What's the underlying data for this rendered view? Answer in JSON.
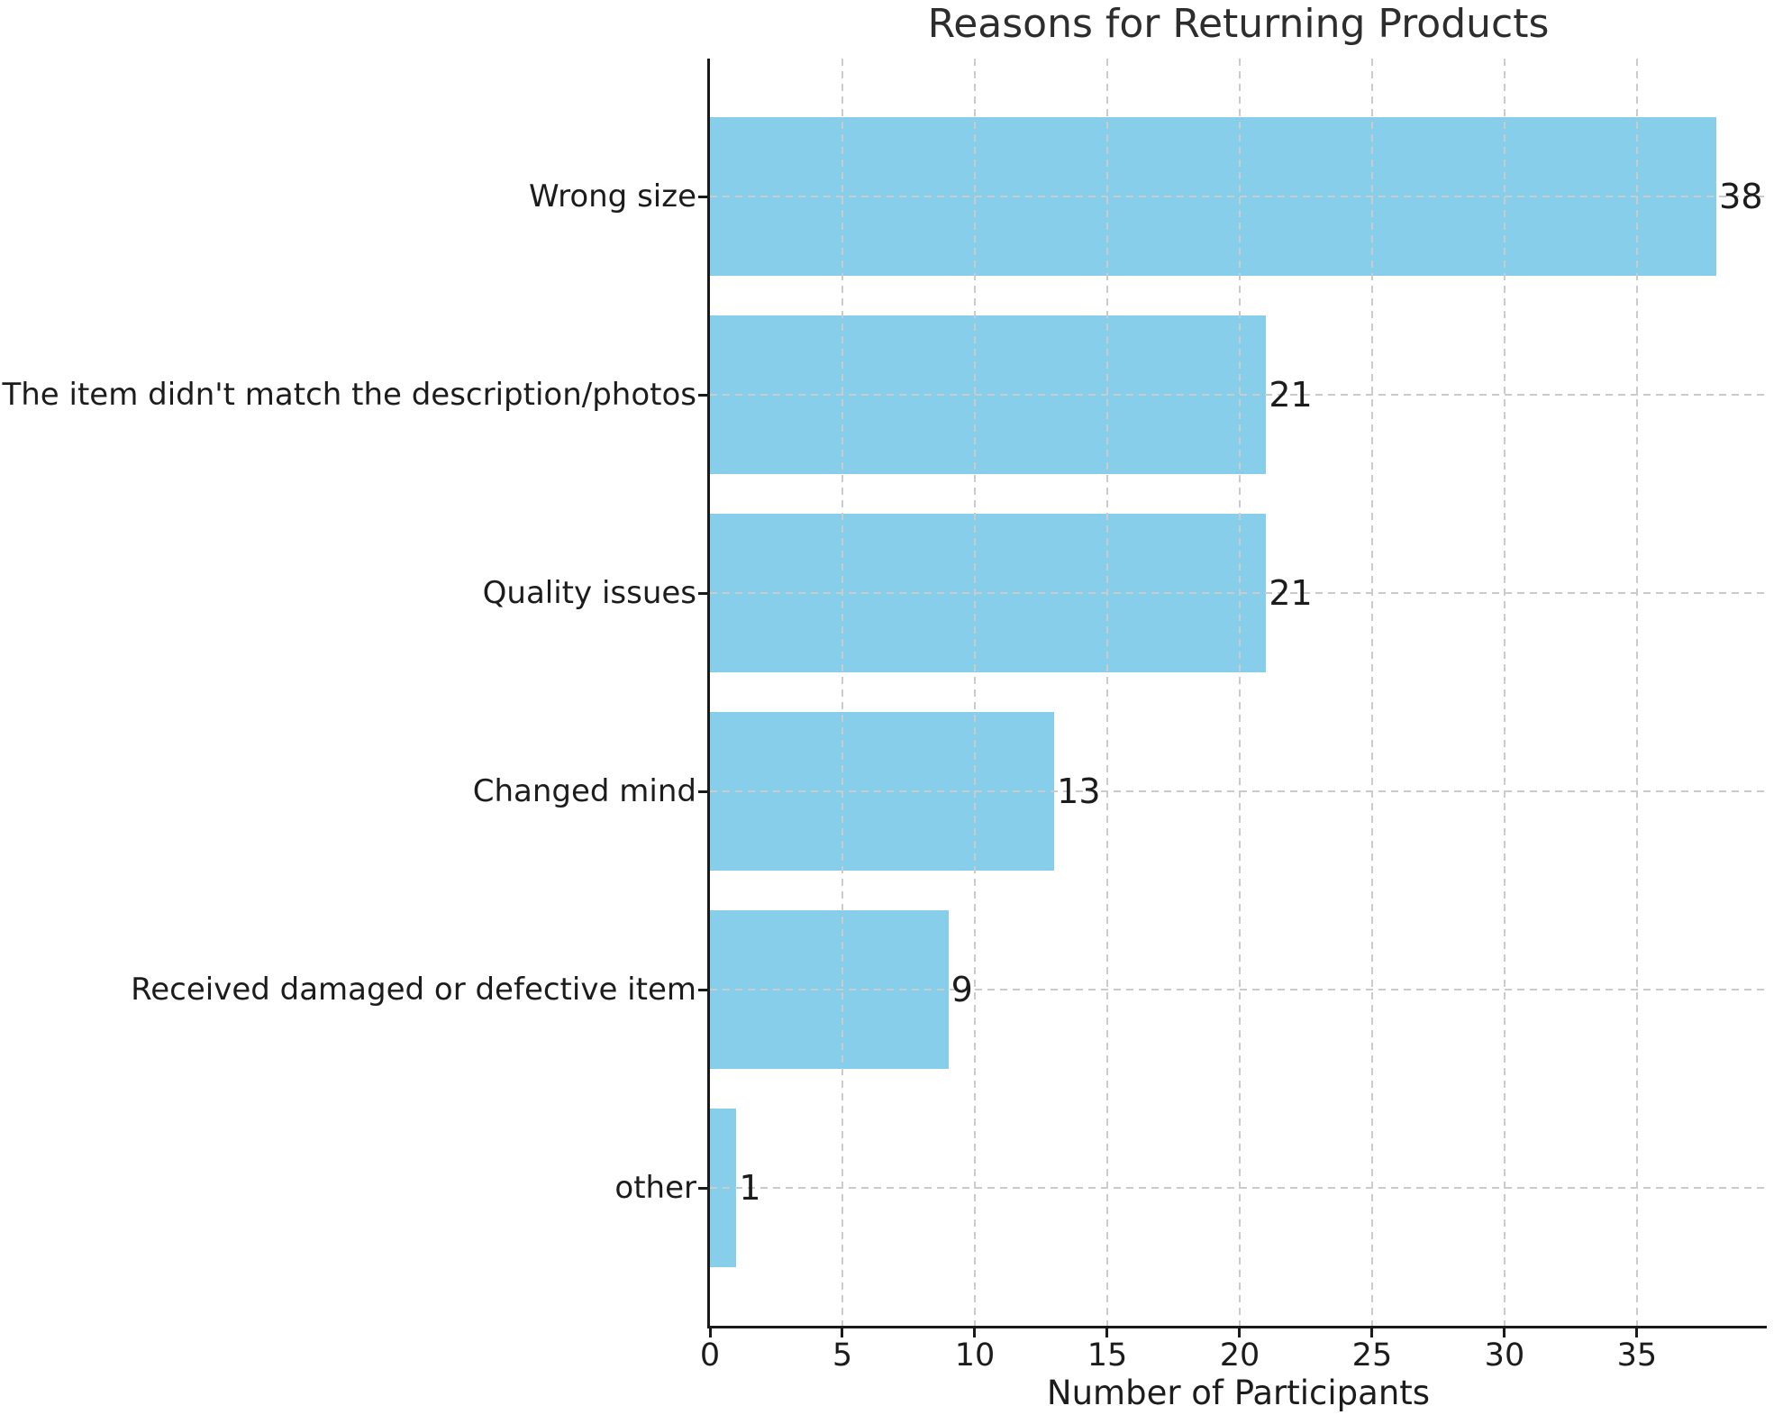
{
  "chart_data": {
    "type": "bar",
    "orientation": "horizontal",
    "title": "Reasons for Returning Products",
    "xlabel": "Number of Participants",
    "ylabel": "",
    "categories": [
      "Wrong size",
      "The item didn't match the description/photos",
      "Quality issues",
      "Changed mind",
      "Received damaged or defective item",
      "other"
    ],
    "values": [
      38,
      21,
      21,
      13,
      9,
      1
    ],
    "value_labels": [
      "38",
      "21",
      "21",
      "13",
      "9",
      "1"
    ],
    "xticks": [
      "0",
      "5",
      "10",
      "15",
      "20",
      "25",
      "30",
      "35"
    ],
    "xtick_values": [
      0,
      5,
      10,
      15,
      20,
      25,
      30,
      35
    ],
    "xlim": [
      0,
      39.9
    ],
    "bar_height_fraction": 0.8,
    "grid": {
      "axes": "both",
      "style": "dashed"
    },
    "legend": "none",
    "colors": {
      "bar": "#87CEEB",
      "grid": "#cbcbcb",
      "axis": "#1a1a1a",
      "text": "#1c1c1c",
      "background": "#ffffff"
    }
  }
}
